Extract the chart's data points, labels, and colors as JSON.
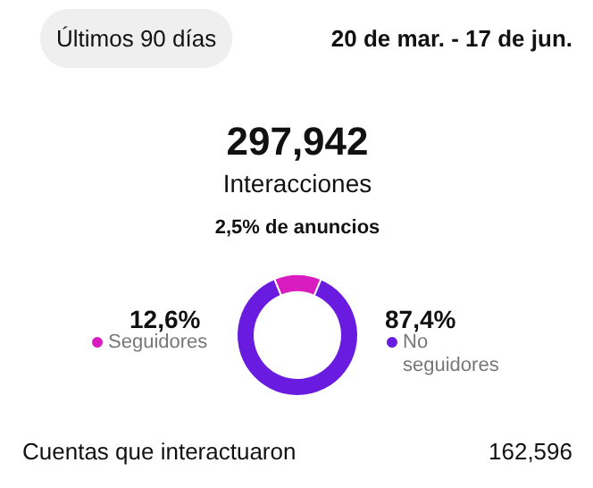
{
  "chart_data": {
    "type": "donut",
    "title": "297,942",
    "subtitle": "Interacciones",
    "categories": [
      "Seguidores",
      "No seguidores"
    ],
    "values": [
      12.6,
      87.4
    ],
    "colors": [
      "#d91cc0",
      "#6a1be0"
    ],
    "value_labels": [
      "12,6%",
      "87,4%"
    ],
    "legend": "bottom",
    "annotations": [
      "Últimos 90 días",
      "20 de mar. - 17 de jun.",
      "2,5% de anuncios",
      "Cuentas que interactuaron",
      "162,596"
    ]
  }
}
